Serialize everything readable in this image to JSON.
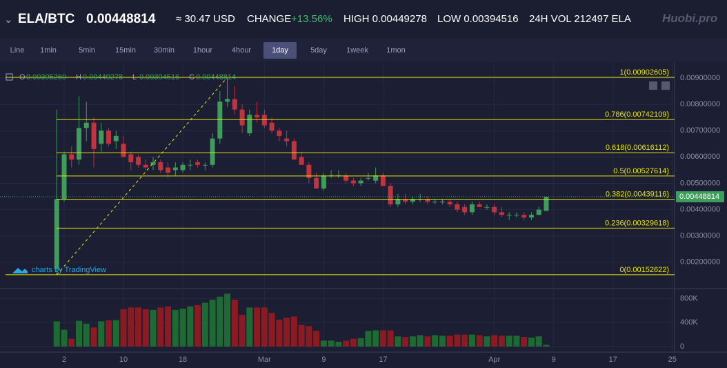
{
  "header": {
    "pair": "ELA/BTC",
    "price": "0.00448814",
    "usd": "≈ 30.47 USD",
    "change_label": "CHANGE",
    "change": "+13.56%",
    "high": "HIGH 0.00449278",
    "low": "LOW 0.00394516",
    "volume": "24H VOL 212497 ELA",
    "brand": "Huobi.pro"
  },
  "toolbar": {
    "items": [
      "Line",
      "1min",
      "5min",
      "15min",
      "30min",
      "1hour",
      "4hour",
      "1day",
      "5day",
      "1week",
      "1mon"
    ],
    "active": "1day"
  },
  "chart_data": {
    "type": "candlestick",
    "legend": [
      "O",
      "0.00395260",
      "H",
      "0.00449278",
      "L",
      "0.00394516",
      "C",
      "0.00448814"
    ],
    "watermark": "charts by TradingView",
    "x": [
      1,
      2,
      3,
      4,
      5,
      6,
      7,
      8,
      9,
      10,
      11,
      12,
      13,
      14,
      15,
      16,
      17,
      18,
      19,
      20,
      21,
      22,
      23,
      24,
      25,
      26,
      27,
      28,
      29,
      30,
      31,
      32,
      33,
      34,
      35,
      36,
      37,
      38,
      39,
      40,
      41,
      42,
      43,
      44,
      45,
      46,
      47,
      48,
      49,
      50,
      51,
      52,
      53,
      54,
      55,
      56,
      57,
      58,
      59,
      60,
      61,
      62,
      63,
      64,
      65,
      66,
      67
    ],
    "open": [
      0.00175,
      0.0044,
      0.0061,
      0.0059,
      0.0071,
      0.0073,
      0.0065,
      0.007,
      0.0066,
      0.0065,
      0.0061,
      0.006,
      0.0057,
      0.0057,
      0.0058,
      0.0056,
      0.0055,
      0.0055,
      0.0057,
      0.0058,
      0.0057,
      0.0057,
      0.0067,
      0.0081,
      0.0082,
      0.0078,
      0.0069,
      0.0076,
      0.0076,
      0.0073,
      0.007,
      0.0067,
      0.0066,
      0.006,
      0.0057,
      0.0052,
      0.0048,
      0.0053,
      0.0053,
      0.0053,
      0.0051,
      0.005,
      0.0052,
      0.0051,
      0.0053,
      0.0049,
      0.0042,
      0.0044,
      0.0043,
      0.0044,
      0.0044,
      0.0043,
      0.0043,
      0.0043,
      0.0042,
      0.0041,
      0.0039,
      0.0042,
      0.0041,
      0.0041,
      0.0039,
      0.0038,
      0.0038,
      0.0038,
      0.0037,
      0.0038,
      0.0039526
    ],
    "high": [
      0.0078,
      0.0062,
      0.0064,
      0.0083,
      0.0081,
      0.0075,
      0.0073,
      0.0071,
      0.007,
      0.0068,
      0.0062,
      0.0061,
      0.0059,
      0.006,
      0.0059,
      0.0058,
      0.0058,
      0.0058,
      0.0059,
      0.0059,
      0.0058,
      0.0069,
      0.0085,
      0.009,
      0.0087,
      0.008,
      0.0078,
      0.0081,
      0.0078,
      0.0075,
      0.0071,
      0.007,
      0.0067,
      0.0062,
      0.0058,
      0.0054,
      0.0054,
      0.0055,
      0.0055,
      0.0054,
      0.0052,
      0.0052,
      0.0054,
      0.0056,
      0.0054,
      0.005,
      0.0046,
      0.0046,
      0.0045,
      0.0046,
      0.0045,
      0.0044,
      0.0044,
      0.0044,
      0.0043,
      0.0042,
      0.0043,
      0.0043,
      0.0042,
      0.0042,
      0.0041,
      0.0039,
      0.0039,
      0.0039,
      0.0039,
      0.0041,
      0.00449278
    ],
    "low": [
      0.00153,
      0.0043,
      0.0056,
      0.0057,
      0.0066,
      0.0056,
      0.0062,
      0.0064,
      0.0063,
      0.006,
      0.0055,
      0.0056,
      0.0055,
      0.0055,
      0.0054,
      0.0052,
      0.0053,
      0.0054,
      0.0055,
      0.0056,
      0.0055,
      0.0056,
      0.0065,
      0.0079,
      0.0076,
      0.0069,
      0.0068,
      0.0073,
      0.0071,
      0.0069,
      0.0066,
      0.0064,
      0.0059,
      0.0057,
      0.005,
      0.0048,
      0.0047,
      0.0052,
      0.0052,
      0.005,
      0.0049,
      0.0049,
      0.0051,
      0.005,
      0.0049,
      0.0041,
      0.0041,
      0.0042,
      0.0042,
      0.0043,
      0.0042,
      0.0042,
      0.0042,
      0.0041,
      0.0039,
      0.0038,
      0.0038,
      0.0041,
      0.004,
      0.0038,
      0.0037,
      0.0036,
      0.0037,
      0.0036,
      0.0036,
      0.0038,
      0.00394516
    ],
    "close": [
      0.0044,
      0.0061,
      0.0059,
      0.0071,
      0.0073,
      0.0063,
      0.007,
      0.0065,
      0.0068,
      0.006,
      0.0058,
      0.0057,
      0.0056,
      0.0058,
      0.0055,
      0.0054,
      0.0056,
      0.0057,
      0.0057,
      0.0057,
      0.0057,
      0.0067,
      0.0081,
      0.0082,
      0.0078,
      0.0072,
      0.0076,
      0.0075,
      0.0072,
      0.007,
      0.0068,
      0.0066,
      0.0059,
      0.0057,
      0.0052,
      0.0048,
      0.0053,
      0.0053,
      0.0053,
      0.0051,
      0.005,
      0.0051,
      0.0052,
      0.0053,
      0.0049,
      0.0042,
      0.0044,
      0.0043,
      0.0044,
      0.0044,
      0.0043,
      0.0043,
      0.0043,
      0.0042,
      0.004,
      0.0039,
      0.0042,
      0.0041,
      0.0041,
      0.0039,
      0.0038,
      0.0038,
      0.0038,
      0.0037,
      0.0038,
      0.004,
      0.00448814
    ],
    "volume": [
      420000,
      280000,
      130000,
      430000,
      380000,
      320000,
      420000,
      440000,
      440000,
      620000,
      650000,
      650000,
      620000,
      610000,
      650000,
      670000,
      610000,
      630000,
      670000,
      690000,
      730000,
      780000,
      830000,
      880000,
      780000,
      530000,
      650000,
      650000,
      650000,
      560000,
      450000,
      480000,
      500000,
      360000,
      340000,
      260000,
      100000,
      100000,
      80000,
      100000,
      130000,
      140000,
      260000,
      270000,
      270000,
      270000,
      170000,
      160000,
      170000,
      190000,
      170000,
      190000,
      180000,
      180000,
      200000,
      200000,
      200000,
      190000,
      170000,
      190000,
      180000,
      180000,
      180000,
      160000,
      150000,
      170000,
      30000
    ],
    "up_color": "#3f9d5c",
    "down_color": "#c0343f",
    "vol_up_color": "#1e6a33",
    "vol_down_color": "#8a1b22",
    "xlim": [
      -6.65,
      84.3
    ],
    "xticks": [
      {
        "value": 2,
        "label": "2"
      },
      {
        "value": 10,
        "label": "10"
      },
      {
        "value": 18,
        "label": "18"
      },
      {
        "value": 29,
        "label": "Mar"
      },
      {
        "value": 37,
        "label": "9"
      },
      {
        "value": 45,
        "label": "17"
      },
      {
        "value": 60,
        "label": "Apr"
      },
      {
        "value": 68,
        "label": "9"
      },
      {
        "value": 76,
        "label": "17"
      },
      {
        "value": 84,
        "label": "25"
      }
    ],
    "ylim": [
      0.00134,
      0.00934
    ],
    "yticks": [
      {
        "value": 0.002,
        "label": "0.00200000"
      },
      {
        "value": 0.003,
        "label": "0.00300000"
      },
      {
        "value": 0.004,
        "label": "0.00400000"
      },
      {
        "value": 0.005,
        "label": "0.00500000"
      },
      {
        "value": 0.006,
        "label": "0.00600000"
      },
      {
        "value": 0.007,
        "label": "0.00700000"
      },
      {
        "value": 0.008,
        "label": "0.00800000"
      },
      {
        "value": 0.009,
        "label": "0.00900000"
      }
    ],
    "volume_ylim": [
      -35000,
      1000000
    ],
    "volume_yticks": [
      {
        "value": 0,
        "label": "0"
      },
      {
        "value": 400000,
        "label": "400K"
      },
      {
        "value": 800000,
        "label": "800K"
      }
    ],
    "last_price": 0.00448814,
    "fib_color": "#e8e800",
    "fib_levels": [
      {
        "value": 0.00902605,
        "label": "1(0.00902605)"
      },
      {
        "value": 0.00742109,
        "label": "0.786(0.00742109)"
      },
      {
        "value": 0.00616112,
        "label": "0.618(0.00616112)"
      },
      {
        "value": 0.00527614,
        "label": "0.5(0.00527614)"
      },
      {
        "value": 0.00439116,
        "label": "0.382(0.00439116)"
      },
      {
        "value": 0.00329618,
        "label": "0.236(0.00329618)"
      },
      {
        "value": 0.00152622,
        "label": "0(0.00152622)"
      }
    ],
    "trend_line": {
      "x": [
        1,
        24
      ],
      "y": [
        0.00152622,
        0.00902605
      ]
    },
    "grid": true
  }
}
